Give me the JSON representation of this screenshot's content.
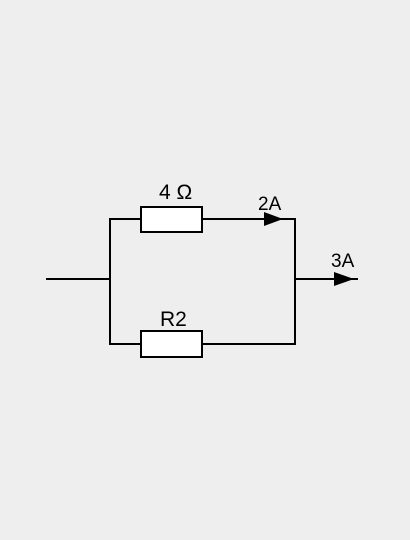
{
  "circuit": {
    "resistor_top_label": "4 Ω",
    "resistor_bottom_label": "R2",
    "current_top_branch_label": "2A",
    "current_output_label": "3A"
  },
  "colors": {
    "background": "#eeeeee",
    "wire": "#000000",
    "resistor_fill": "#ffffff"
  }
}
